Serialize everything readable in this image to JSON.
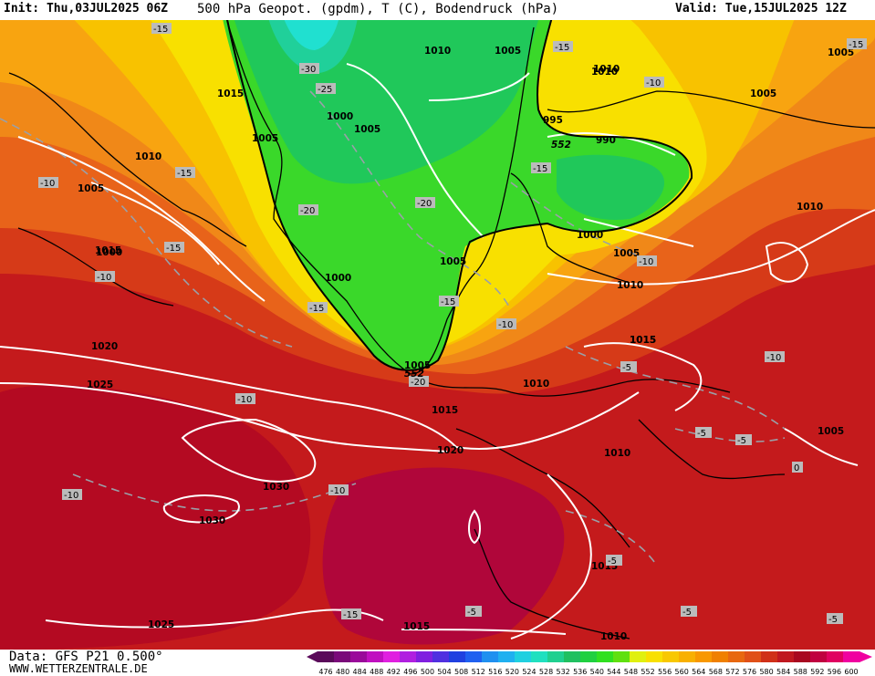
{
  "header": {
    "init": "Init: Thu,03JUL2025 06Z",
    "title": "500 hPa Geopot. (gpdm), T (C), Bodendruck (hPa)",
    "valid": "Valid: Tue,15JUL2025 12Z"
  },
  "footer": {
    "data_line": "Data: GFS P21 0.500°",
    "site": "WWW.WETTERZENTRALE.DE"
  },
  "colorbar": {
    "labels": [
      "476",
      "480",
      "484",
      "488",
      "492",
      "496",
      "500",
      "504",
      "508",
      "512",
      "516",
      "520",
      "524",
      "528",
      "532",
      "536",
      "540",
      "544",
      "548",
      "552",
      "556",
      "560",
      "564",
      "568",
      "572",
      "576",
      "580",
      "584",
      "588",
      "592",
      "596",
      "600"
    ],
    "colors": [
      "#5a0a5a",
      "#7a0a7a",
      "#9a0a9a",
      "#c010c0",
      "#e020e0",
      "#b020e0",
      "#8020e0",
      "#5030e0",
      "#2040e0",
      "#2060f0",
      "#2090f0",
      "#20b0f0",
      "#20d0e0",
      "#20e0c0",
      "#20d090",
      "#20c060",
      "#20d040",
      "#30e020",
      "#60e010",
      "#e0f010",
      "#f8e000",
      "#f8c800",
      "#f8b000",
      "#f89800",
      "#f08000",
      "#e86810",
      "#e05018",
      "#d03018",
      "#c01820",
      "#a80820",
      "#c00040",
      "#e00060",
      "#f000a0"
    ]
  },
  "map": {
    "isobars": [
      "1015",
      "1010",
      "1005",
      "1000",
      "1005",
      "1000",
      "1005",
      "1010",
      "1005",
      "995",
      "990",
      "1010",
      "1015",
      "1010",
      "1005",
      "1005",
      "1010",
      "1000",
      "1005",
      "1010",
      "1010",
      "1015",
      "1020",
      "1025",
      "1000",
      "1005",
      "1015",
      "1020",
      "1010",
      "1015",
      "1005",
      "1030",
      "1030",
      "1015",
      "1025",
      "1015",
      "1010",
      "1005"
    ],
    "temps": [
      "-15",
      "-30",
      "-25",
      "-15",
      "-15",
      "-10",
      "-10",
      "-15",
      "-20",
      "-20",
      "-15",
      "-15",
      "-15",
      "-10",
      "-20",
      "-10",
      "-5",
      "-10",
      "-10",
      "-5",
      "-5",
      "-10",
      "-10",
      "0",
      "-10",
      "-15",
      "-5",
      "-5",
      "-5",
      "-5",
      "-15"
    ],
    "contour_552": [
      "552",
      "552"
    ]
  }
}
